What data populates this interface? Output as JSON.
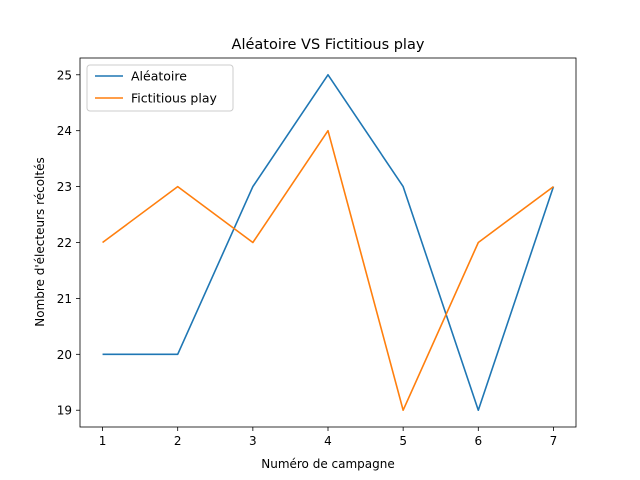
{
  "chart_data": {
    "type": "line",
    "title": "Aléatoire VS Fictitious play",
    "xlabel": "Numéro de campagne",
    "ylabel": "Nombre d'électeurs récoltés",
    "x": [
      1,
      2,
      3,
      4,
      5,
      6,
      7
    ],
    "xticks": [
      "1",
      "2",
      "3",
      "4",
      "5",
      "6",
      "7"
    ],
    "yticks": [
      "19",
      "20",
      "21",
      "22",
      "23",
      "24",
      "25"
    ],
    "xlim": [
      0.7,
      7.3
    ],
    "ylim": [
      18.7,
      25.3
    ],
    "grid": false,
    "legend_position": "top-left",
    "series": [
      {
        "name": "Aléatoire",
        "color": "#1f77b4",
        "values": [
          20,
          20,
          23,
          25,
          23,
          19,
          23
        ]
      },
      {
        "name": "Fictitious play",
        "color": "#ff7f0e",
        "values": [
          22,
          23,
          22,
          24,
          19,
          22,
          23
        ]
      }
    ]
  }
}
